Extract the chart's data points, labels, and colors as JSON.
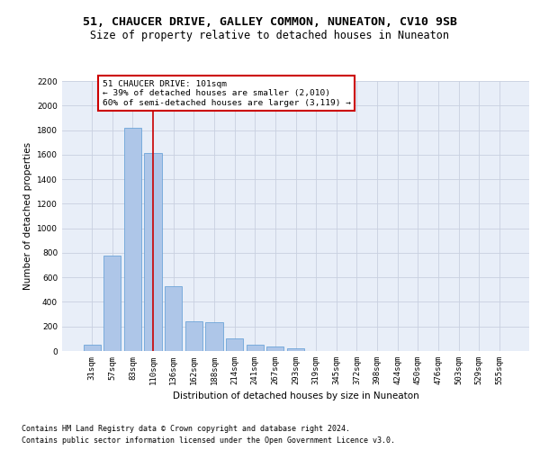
{
  "title1": "51, CHAUCER DRIVE, GALLEY COMMON, NUNEATON, CV10 9SB",
  "title2": "Size of property relative to detached houses in Nuneaton",
  "xlabel": "Distribution of detached houses by size in Nuneaton",
  "ylabel": "Number of detached properties",
  "footer1": "Contains HM Land Registry data © Crown copyright and database right 2024.",
  "footer2": "Contains public sector information licensed under the Open Government Licence v3.0.",
  "annotation_line1": "51 CHAUCER DRIVE: 101sqm",
  "annotation_line2": "← 39% of detached houses are smaller (2,010)",
  "annotation_line3": "60% of semi-detached houses are larger (3,119) →",
  "bar_color": "#aec6e8",
  "bar_edge_color": "#5b9bd5",
  "grid_color": "#c8d0e0",
  "annotation_box_color": "#cc0000",
  "vline_color": "#cc0000",
  "bg_color": "#e8eef8",
  "categories": [
    "31sqm",
    "57sqm",
    "83sqm",
    "110sqm",
    "136sqm",
    "162sqm",
    "188sqm",
    "214sqm",
    "241sqm",
    "267sqm",
    "293sqm",
    "319sqm",
    "345sqm",
    "372sqm",
    "398sqm",
    "424sqm",
    "450sqm",
    "476sqm",
    "503sqm",
    "529sqm",
    "555sqm"
  ],
  "values": [
    50,
    780,
    1820,
    1610,
    525,
    240,
    235,
    105,
    55,
    40,
    25,
    0,
    0,
    0,
    0,
    0,
    0,
    0,
    0,
    0,
    0
  ],
  "vline_position": 3.0,
  "ylim": [
    0,
    2200
  ],
  "yticks": [
    0,
    200,
    400,
    600,
    800,
    1000,
    1200,
    1400,
    1600,
    1800,
    2000,
    2200
  ],
  "title1_fontsize": 9.5,
  "title2_fontsize": 8.5,
  "axis_fontsize": 7.5,
  "tick_fontsize": 6.5,
  "annotation_fontsize": 6.8,
  "footer_fontsize": 6.0
}
